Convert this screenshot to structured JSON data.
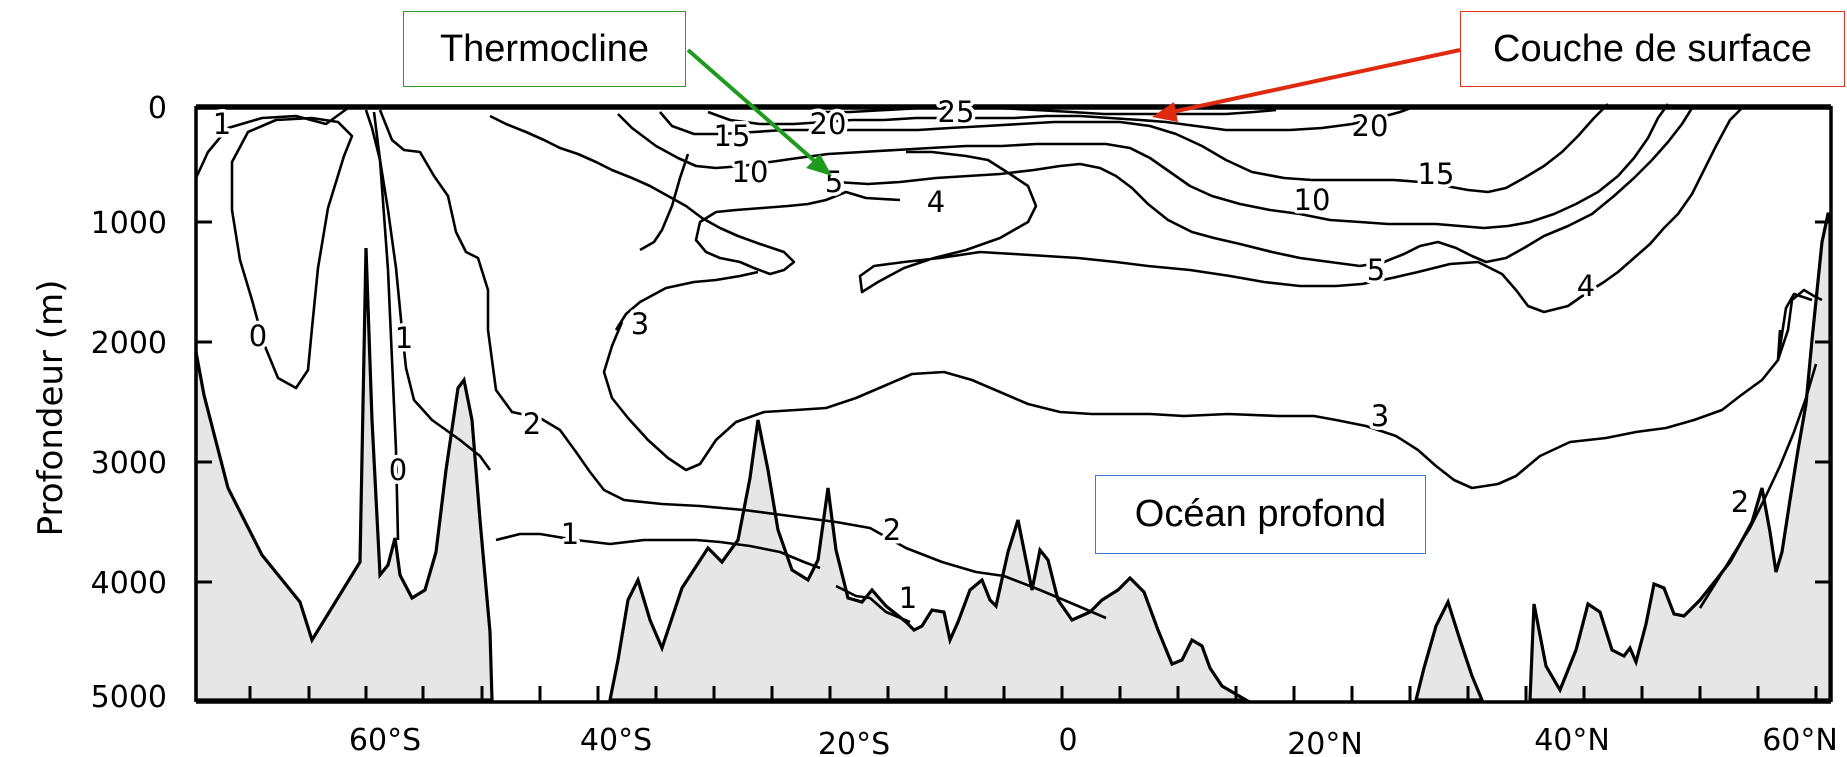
{
  "annotations": {
    "thermocline": "Thermocline",
    "surface_layer": "Couche de surface",
    "deep_ocean": "Océan profond"
  },
  "axes": {
    "y_label": "Profondeur  (m)",
    "y_ticks": [
      "0",
      "1000",
      "2000",
      "3000",
      "4000",
      "5000"
    ],
    "x_ticks": [
      "60°S",
      "40°S",
      "20°S",
      "0",
      "20°N",
      "40°N",
      "60°N"
    ]
  },
  "contour_labels": [
    "1",
    "0",
    "1",
    "0",
    "2",
    "1",
    "15",
    "20",
    "25",
    "20",
    "10",
    "5",
    "4",
    "15",
    "10",
    "5",
    "4",
    "3",
    "3",
    "2",
    "1",
    "2"
  ],
  "colors": {
    "thermocline_arrow": "#1e9a1e",
    "surface_arrow": "#e02a10",
    "deep_box_border": "#3a78d8",
    "seafloor_fill": "#e6e6e6"
  }
}
